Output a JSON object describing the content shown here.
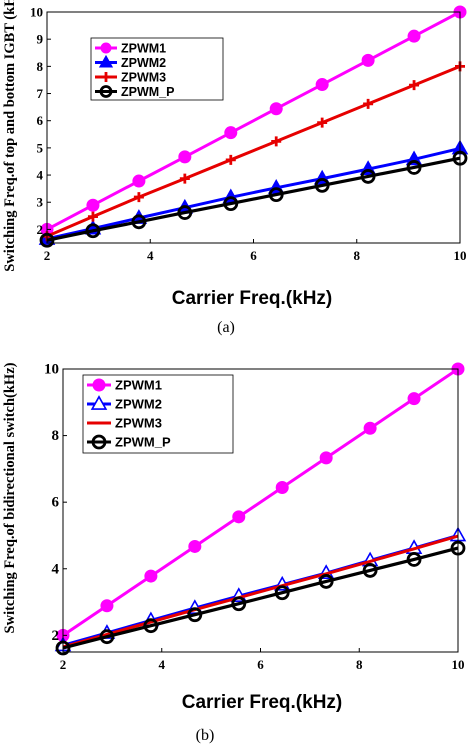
{
  "chart_data": [
    {
      "type": "line",
      "caption": "(a)",
      "ylabel": "Switching Freq.of top and bottom IGBT (kHz)",
      "xlabel": "Carrier Freq.(kHz)",
      "xlim": [
        2,
        10
      ],
      "ylim": [
        1.5,
        10
      ],
      "xticks": [
        2,
        4,
        6,
        8,
        10
      ],
      "yticks": [
        2,
        3,
        4,
        5,
        6,
        7,
        8,
        9,
        10
      ],
      "grid": false,
      "legend_position": "top-left",
      "x": [
        2,
        2.89,
        3.78,
        4.67,
        5.56,
        6.44,
        7.33,
        8.22,
        9.11,
        10
      ],
      "series": [
        {
          "name": "ZPWM1",
          "color": "#ff00ff",
          "marker": "circle-filled",
          "values": [
            2.0,
            2.89,
            3.78,
            4.67,
            5.56,
            6.44,
            7.33,
            8.22,
            9.11,
            10.0
          ]
        },
        {
          "name": "ZPWM2",
          "color": "#0000ff",
          "marker": "triangle-filled",
          "values": [
            1.65,
            2.03,
            2.42,
            2.8,
            3.18,
            3.53,
            3.87,
            4.22,
            4.58,
            4.98
          ]
        },
        {
          "name": "ZPWM3",
          "color": "#e60000",
          "marker": "plus",
          "values": [
            1.75,
            2.47,
            3.19,
            3.87,
            4.56,
            5.24,
            5.93,
            6.62,
            7.31,
            8.0
          ]
        },
        {
          "name": "ZPWM_P",
          "color": "#000000",
          "marker": "circle-open",
          "values": [
            1.6,
            1.95,
            2.28,
            2.62,
            2.95,
            3.28,
            3.62,
            3.95,
            4.28,
            4.62
          ]
        }
      ]
    },
    {
      "type": "line",
      "caption": "(b)",
      "ylabel": "Switching Freq.of bidirectional switch(kHz)",
      "xlabel": "Carrier Freq.(kHz)",
      "xlim": [
        2,
        10
      ],
      "ylim": [
        1.5,
        10
      ],
      "xticks": [
        2,
        4,
        6,
        8,
        10
      ],
      "yticks": [
        2,
        4,
        6,
        8,
        10
      ],
      "grid": false,
      "legend_position": "top-left",
      "x": [
        2,
        2.89,
        3.78,
        4.67,
        5.56,
        6.44,
        7.33,
        8.22,
        9.11,
        10
      ],
      "series": [
        {
          "name": "ZPWM1",
          "color": "#ff00ff",
          "marker": "circle-filled",
          "values": [
            2.0,
            2.89,
            3.78,
            4.67,
            5.56,
            6.44,
            7.33,
            8.22,
            9.11,
            10.0
          ]
        },
        {
          "name": "ZPWM2",
          "color": "#0000ff",
          "marker": "triangle-open",
          "values": [
            1.7,
            2.07,
            2.45,
            2.82,
            3.18,
            3.52,
            3.87,
            4.25,
            4.62,
            5.0
          ]
        },
        {
          "name": "ZPWM3",
          "color": "#e60000",
          "marker": "none",
          "values": [
            1.65,
            2.03,
            2.4,
            2.77,
            3.13,
            3.49,
            3.85,
            4.22,
            4.6,
            4.98
          ]
        },
        {
          "name": "ZPWM_P",
          "color": "#000000",
          "marker": "circle-open",
          "values": [
            1.62,
            1.96,
            2.29,
            2.62,
            2.95,
            3.28,
            3.62,
            3.95,
            4.28,
            4.62
          ]
        }
      ]
    }
  ]
}
